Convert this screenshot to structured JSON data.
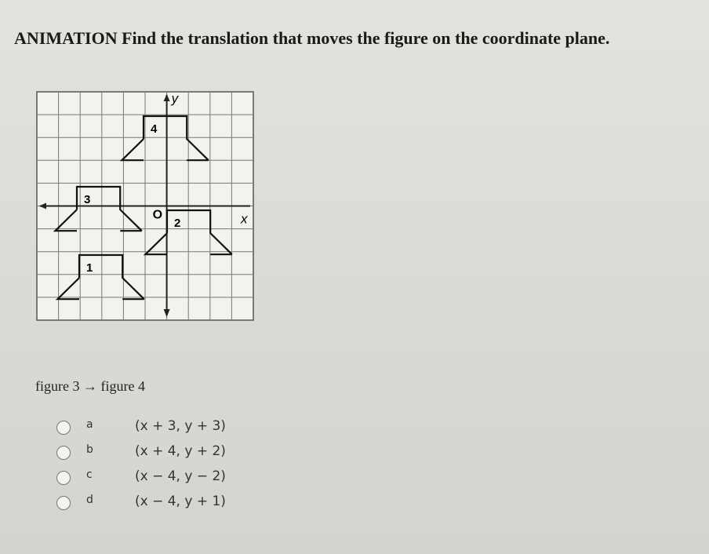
{
  "header": {
    "title": "ANIMATION Find the translation that moves the figure on the coordinate plane."
  },
  "graph": {
    "y_axis_label": "y",
    "x_axis_label": "x",
    "origin_label": "O",
    "figures": [
      {
        "label": "1"
      },
      {
        "label": "2"
      },
      {
        "label": "3"
      },
      {
        "label": "4"
      }
    ]
  },
  "question": {
    "prompt": "figure 3 → figure 4",
    "options": [
      {
        "letter": "a",
        "text": "(x + 3, y + 3)"
      },
      {
        "letter": "b",
        "text": "(x + 4, y + 2)"
      },
      {
        "letter": "c",
        "text": "(x − 4, y − 2)"
      },
      {
        "letter": "d",
        "text": "(x − 4, y + 1)"
      }
    ]
  }
}
